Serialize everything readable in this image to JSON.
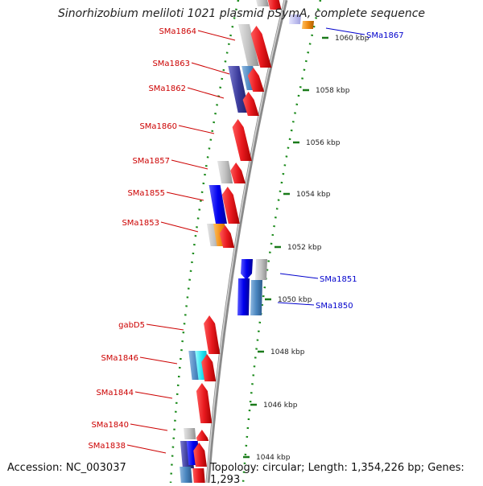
{
  "title": "Sinorhizobium meliloti 1021 plasmid pSymA, complete sequence",
  "accession_label": "Accession: NC_003037",
  "topology_label": "Topology: circular; Length: 1,354,226 bp; Genes: 1,293",
  "colors": {
    "forward_gene": "#e8191e",
    "reverse_gene_label": "#0000cc",
    "forward_label": "#cc0000",
    "backbone": "#9a9a9a",
    "tick": "#1a7a1a",
    "kbp_text": "#222222"
  },
  "kbp_ticks": [
    {
      "label": "1060 kbp"
    },
    {
      "label": "1058 kbp"
    },
    {
      "label": "1056 kbp"
    },
    {
      "label": "1054 kbp"
    },
    {
      "label": "1052 kbp"
    },
    {
      "label": "1050 kbp"
    },
    {
      "label": "1048 kbp"
    },
    {
      "label": "1046 kbp"
    },
    {
      "label": "1044 kbp"
    }
  ],
  "forward_gene_labels": [
    {
      "label": "SMa1864"
    },
    {
      "label": "SMa1863"
    },
    {
      "label": "SMa1862"
    },
    {
      "label": "SMa1860"
    },
    {
      "label": "SMa1857"
    },
    {
      "label": "SMa1855"
    },
    {
      "label": "SMa1853"
    },
    {
      "label": "gabD5"
    },
    {
      "label": "SMa1846"
    },
    {
      "label": "SMa1844"
    },
    {
      "label": "SMa1840"
    },
    {
      "label": "SMa1838"
    }
  ],
  "reverse_gene_labels": [
    {
      "label": "SMa1867"
    },
    {
      "label": "SMa1851"
    },
    {
      "label": "SMa1850"
    }
  ]
}
